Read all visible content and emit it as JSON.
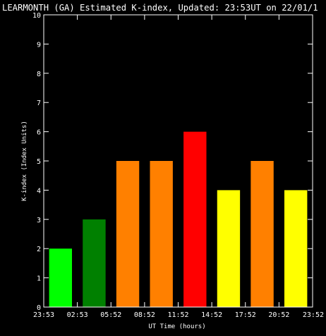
{
  "chart_data": {
    "type": "bar",
    "title": "LEARMONTH (GA) Estimated K-index, Updated: 23:53UT on 22/01/1",
    "xlabel": "UT Time (hours)",
    "ylabel": "K-index (Index Units)",
    "ylim": [
      0,
      10
    ],
    "yticks": [
      "0",
      "1",
      "2",
      "3",
      "4",
      "5",
      "6",
      "7",
      "8",
      "9",
      "10"
    ],
    "xtick_labels": [
      "23:53",
      "02:53",
      "05:52",
      "08:52",
      "11:52",
      "14:52",
      "17:52",
      "20:52",
      "23:52"
    ],
    "values": [
      2,
      3,
      5,
      5,
      6,
      4,
      5,
      4
    ],
    "bar_colors": [
      "#00ff00",
      "#008000",
      "#ff8000",
      "#ff8000",
      "#ff0000",
      "#ffff00",
      "#ff8000",
      "#ffff00"
    ],
    "grid": false,
    "legend": "none",
    "background": "#000000",
    "foreground": "#ffffff"
  }
}
